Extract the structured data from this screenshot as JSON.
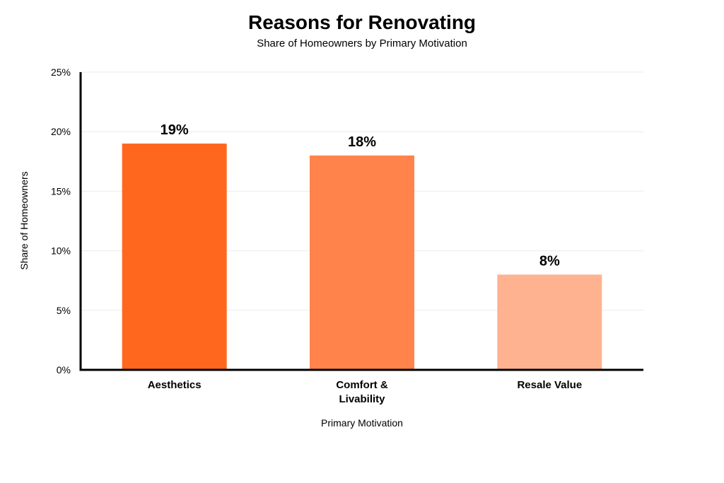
{
  "chart_data": {
    "type": "bar",
    "title": "Reasons for Renovating",
    "subtitle": "Share of Homeowners by Primary Motivation",
    "xlabel": "Primary Motivation",
    "ylabel": "Share of Homeowners",
    "categories": [
      [
        "Aesthetics"
      ],
      [
        "Comfort &",
        "Livability"
      ],
      [
        "Resale Value"
      ]
    ],
    "values": [
      19,
      18,
      8
    ],
    "data_labels": [
      "19%",
      "18%",
      "8%"
    ],
    "colors": [
      "#ff671f",
      "#ff834a",
      "#ffb290"
    ],
    "ylim": [
      0,
      25
    ],
    "yticks": [
      0,
      5,
      10,
      15,
      20,
      25
    ],
    "ytick_labels": [
      "0%",
      "5%",
      "10%",
      "15%",
      "20%",
      "25%"
    ],
    "grid": true,
    "legend": "none"
  }
}
